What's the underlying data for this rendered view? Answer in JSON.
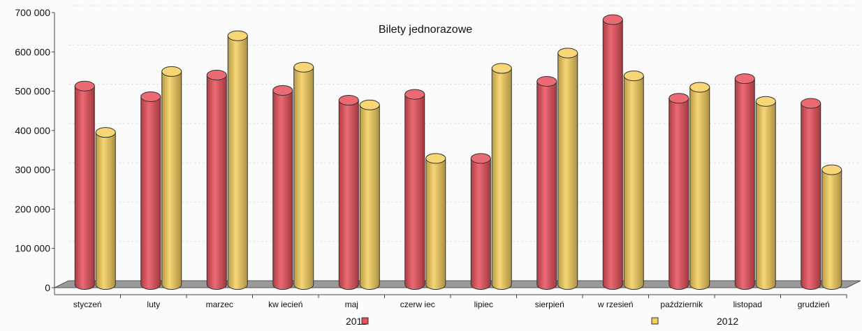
{
  "chart_data": {
    "type": "bar",
    "title": "Bilety jednorazowe",
    "xlabel": "",
    "ylabel": "",
    "categories": [
      "styczeń",
      "luty",
      "marzec",
      "kw iecień",
      "maj",
      "czerw iec",
      "lipiec",
      "sierpień",
      "w rzesień",
      "październik",
      "listopad",
      "grudzień"
    ],
    "series": [
      {
        "name": "2011",
        "color": "#e8505a",
        "values": [
          505000,
          478000,
          533000,
          494000,
          469000,
          484000,
          321000,
          517000,
          674000,
          474000,
          524000,
          461000
        ]
      },
      {
        "name": "2012",
        "color": "#f5cf5e",
        "values": [
          387000,
          542000,
          633000,
          553000,
          457000,
          321000,
          550000,
          589000,
          531000,
          502000,
          466000,
          292000
        ]
      }
    ],
    "ylim": [
      0,
      700000
    ],
    "yticks": [
      0,
      100000,
      200000,
      300000,
      400000,
      500000,
      600000,
      700000
    ],
    "ytick_labels": [
      "0",
      "100 000",
      "200 000",
      "300 000",
      "400 000",
      "500 000",
      "600 000",
      "700 000"
    ],
    "grid": true,
    "legend_position": "bottom",
    "style": "3d-cylinder"
  }
}
